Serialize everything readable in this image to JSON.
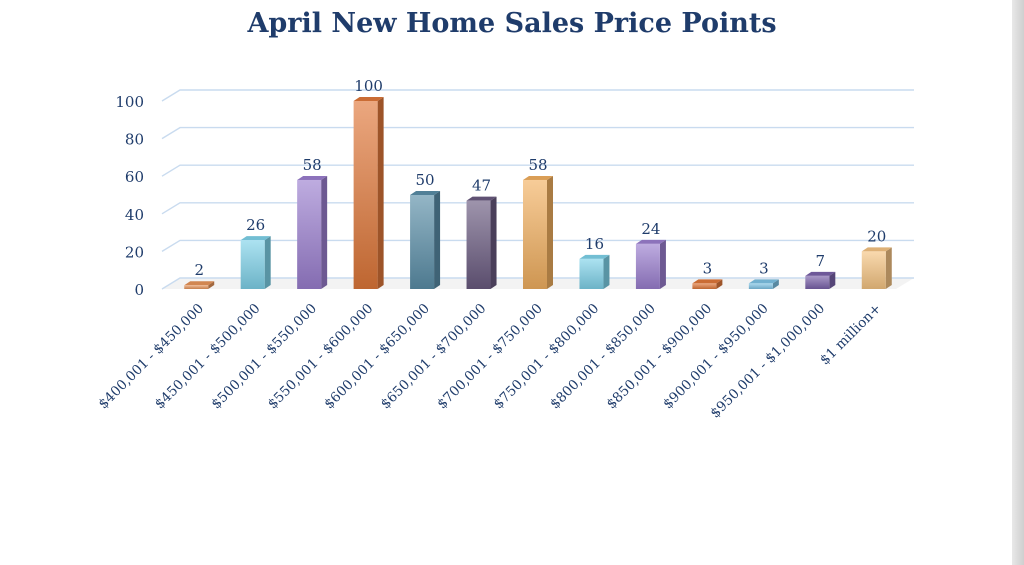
{
  "chart_data": {
    "type": "bar",
    "title": "April New Home Sales Price Points",
    "xlabel": "",
    "ylabel": "",
    "ylim": [
      0,
      100
    ],
    "yticks": [
      0,
      20,
      40,
      60,
      80,
      100
    ],
    "grid": true,
    "legend": "none",
    "categories": [
      "$400,001 - $450,000",
      "$450,001 - $500,000",
      "$500,001 - $550,000",
      "$550,001 - $600,000",
      "$600,001 - $650,000",
      "$650,001 - $700,000",
      "$700,001 - $750,000",
      "$750,001 - $800,000",
      "$800,001 - $850,000",
      "$850,001 - $900,000",
      "$900,001 - $950,000",
      "$950,001 - $1,000,000",
      "$1 million+"
    ],
    "values": [
      2,
      26,
      58,
      100,
      50,
      47,
      58,
      16,
      24,
      3,
      3,
      7,
      20
    ],
    "colors": [
      "#e8955a",
      "#7fd3ea",
      "#9b7fd0",
      "#e0783a",
      "#5a8ea8",
      "#6a5a80",
      "#f2b060",
      "#7fd3ea",
      "#9b7fd0",
      "#e0783a",
      "#7fc4e6",
      "#7a62aa",
      "#f6c483"
    ]
  }
}
